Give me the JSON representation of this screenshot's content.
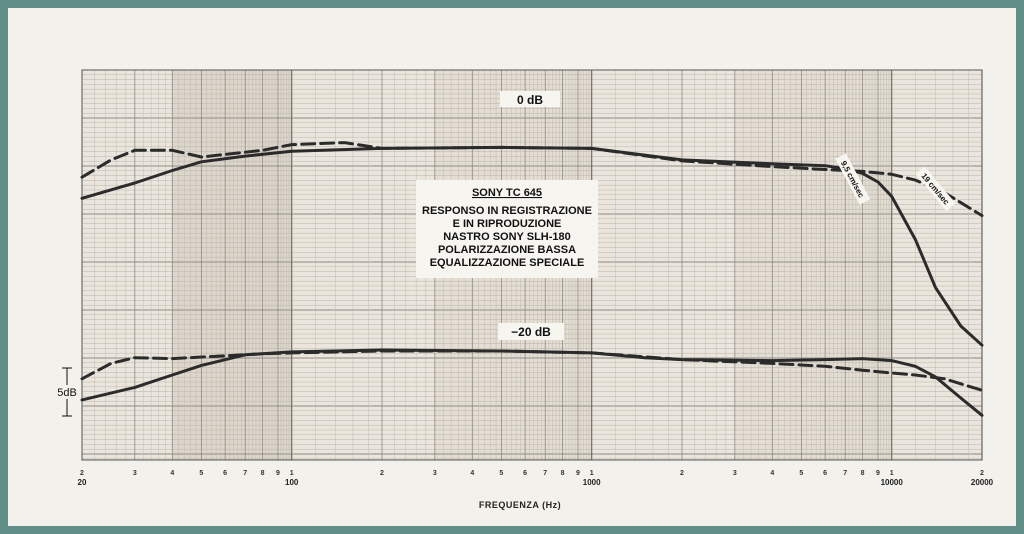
{
  "chart_data": {
    "type": "line",
    "title": "",
    "xlabel": "FREQUENZA (Hz)",
    "ylabel": "",
    "x_scale": "log",
    "xlim": [
      20,
      20000
    ],
    "ylim": [
      -20,
      4
    ],
    "y_unit": "dB",
    "grid": true,
    "decade_labels": [
      "20",
      "100",
      "1000",
      "10000",
      "20000"
    ],
    "minor_tick_labels": [
      "2",
      "3",
      "4",
      "5",
      "6",
      "7",
      "8",
      "9",
      "1"
    ],
    "level_labels": [
      "0 dB",
      "−20 dB"
    ],
    "scale_label": "5dB",
    "annotation_lines": [
      "SONY TC 645",
      "RESPONSO IN REGISTRAZIONE",
      "E IN RIPRODUZIONE",
      "NASTRO SONY SLH-180",
      "POLARIZZAZIONE BASSA",
      "EQUALIZZAZIONE SPECIALE"
    ],
    "speed_labels": [
      "9,5 cm/sec",
      "19 cm/sec"
    ],
    "series": [
      {
        "label": "9,5 cm/sec",
        "style": "solid",
        "group": "0 dB",
        "x": [
          20,
          30,
          40,
          50,
          70,
          100,
          200,
          500,
          1000,
          2000,
          4000,
          6000,
          7000,
          8000,
          9000,
          10000,
          12000,
          14000,
          17000,
          20000
        ],
        "y": [
          -5.2,
          -3.6,
          -2.3,
          -1.4,
          -0.8,
          -0.3,
          0,
          0.1,
          0,
          -1.2,
          -1.6,
          -1.8,
          -2.1,
          -2.6,
          -3.5,
          -5.0,
          -9.5,
          -14.5,
          -18.5,
          -20.5
        ]
      },
      {
        "label": "19 cm/sec",
        "style": "dashed",
        "group": "0 dB",
        "x": [
          20,
          25,
          30,
          40,
          50,
          80,
          100,
          150,
          200,
          500,
          1000,
          2000,
          4000,
          6000,
          8000,
          10000,
          12000,
          15000,
          20000
        ],
        "y": [
          -3.0,
          -1.2,
          -0.2,
          -0.2,
          -0.9,
          -0.2,
          0.4,
          0.6,
          0,
          0.1,
          0,
          -1.3,
          -1.9,
          -2.2,
          -2.4,
          -2.7,
          -3.3,
          -4.6,
          -7.0
        ]
      },
      {
        "label": "9,5 cm/sec",
        "style": "solid",
        "group": "−20 dB",
        "x": [
          20,
          30,
          40,
          50,
          70,
          100,
          200,
          500,
          1000,
          1500,
          2000,
          4000,
          6000,
          8000,
          10000,
          12000,
          14000,
          17000,
          20000
        ],
        "y": [
          -26.2,
          -24.9,
          -23.6,
          -22.6,
          -21.5,
          -21.2,
          -21.0,
          -21.1,
          -21.3,
          -21.8,
          -22.0,
          -22.1,
          -22.0,
          -21.9,
          -22.1,
          -22.7,
          -23.8,
          -26.0,
          -27.8
        ]
      },
      {
        "label": "19 cm/sec",
        "style": "dashed",
        "group": "−20 dB",
        "x": [
          20,
          25,
          30,
          40,
          60,
          80,
          100,
          200,
          500,
          1000,
          2000,
          4000,
          6000,
          8000,
          10000,
          12000,
          15000,
          20000
        ],
        "y": [
          -24.0,
          -22.4,
          -21.8,
          -21.9,
          -21.6,
          -21.4,
          -21.3,
          -21.1,
          -21.1,
          -21.3,
          -22.0,
          -22.4,
          -22.7,
          -23.1,
          -23.4,
          -23.6,
          -24.0,
          -25.2
        ]
      }
    ]
  }
}
